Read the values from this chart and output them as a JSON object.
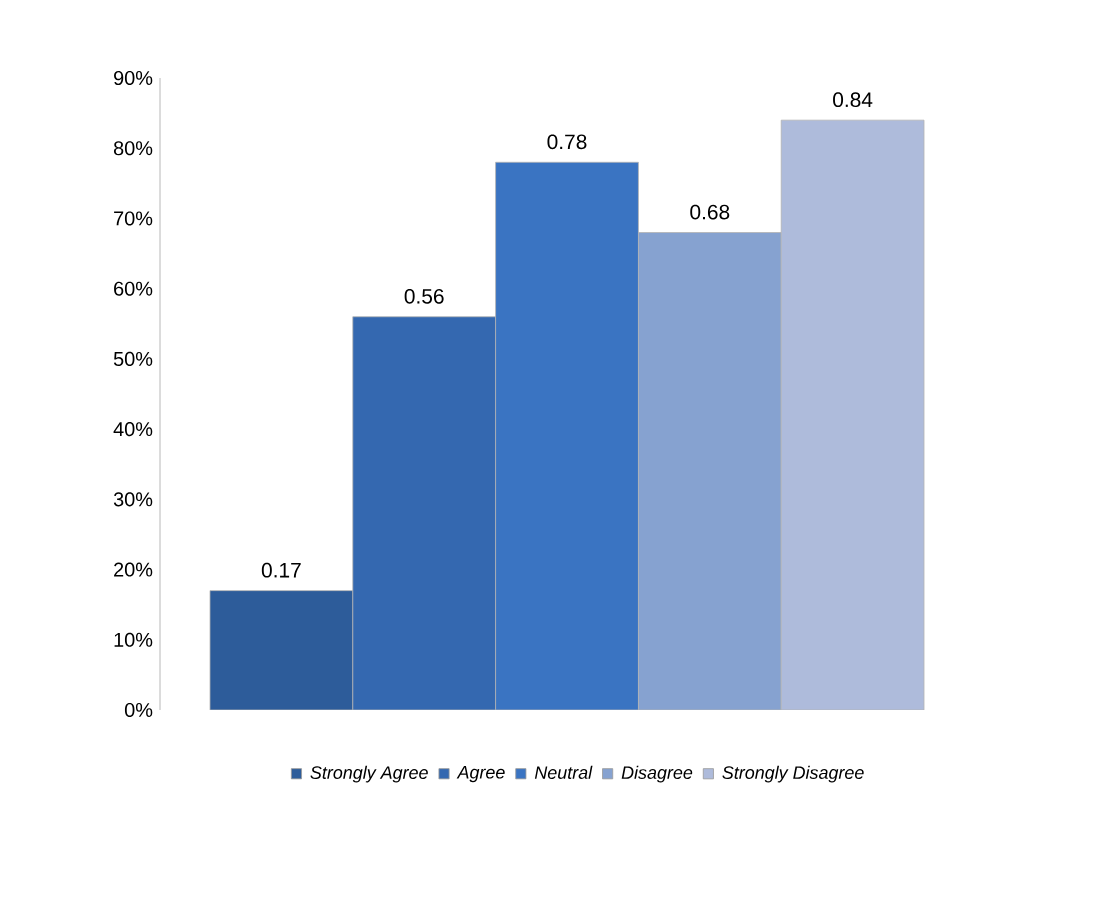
{
  "chart_data": {
    "type": "bar",
    "categories": [
      null
    ],
    "series": [
      {
        "name": "Strongly Agree",
        "color": "#2d5c9a",
        "values": [
          0.17
        ],
        "value_labels": [
          "0.17"
        ]
      },
      {
        "name": "Agree",
        "color": "#3468b0",
        "values": [
          0.56
        ],
        "value_labels": [
          "0.56"
        ]
      },
      {
        "name": "Neutral",
        "color": "#3a74c2",
        "values": [
          0.78
        ],
        "value_labels": [
          "0.78"
        ]
      },
      {
        "name": "Disagree",
        "color": "#86a2d0",
        "values": [
          0.68
        ],
        "value_labels": [
          "0.68"
        ]
      },
      {
        "name": "Strongly Disagree",
        "color": "#aebbdb",
        "values": [
          0.84
        ],
        "value_labels": [
          "0.84"
        ]
      }
    ],
    "ylim": [
      0,
      0.9
    ],
    "yticks": [
      {
        "value": 0,
        "label": "0%"
      },
      {
        "value": 0.1,
        "label": "10%"
      },
      {
        "value": 0.2,
        "label": "20%"
      },
      {
        "value": 0.3,
        "label": "30%"
      },
      {
        "value": 0.4,
        "label": "40%"
      },
      {
        "value": 0.5,
        "label": "50%"
      },
      {
        "value": 0.6,
        "label": "60%"
      },
      {
        "value": 0.7,
        "label": "70%"
      },
      {
        "value": 0.8,
        "label": "80%"
      },
      {
        "value": 0.9,
        "label": "90%"
      }
    ],
    "legend": "bottom",
    "grid": false
  }
}
